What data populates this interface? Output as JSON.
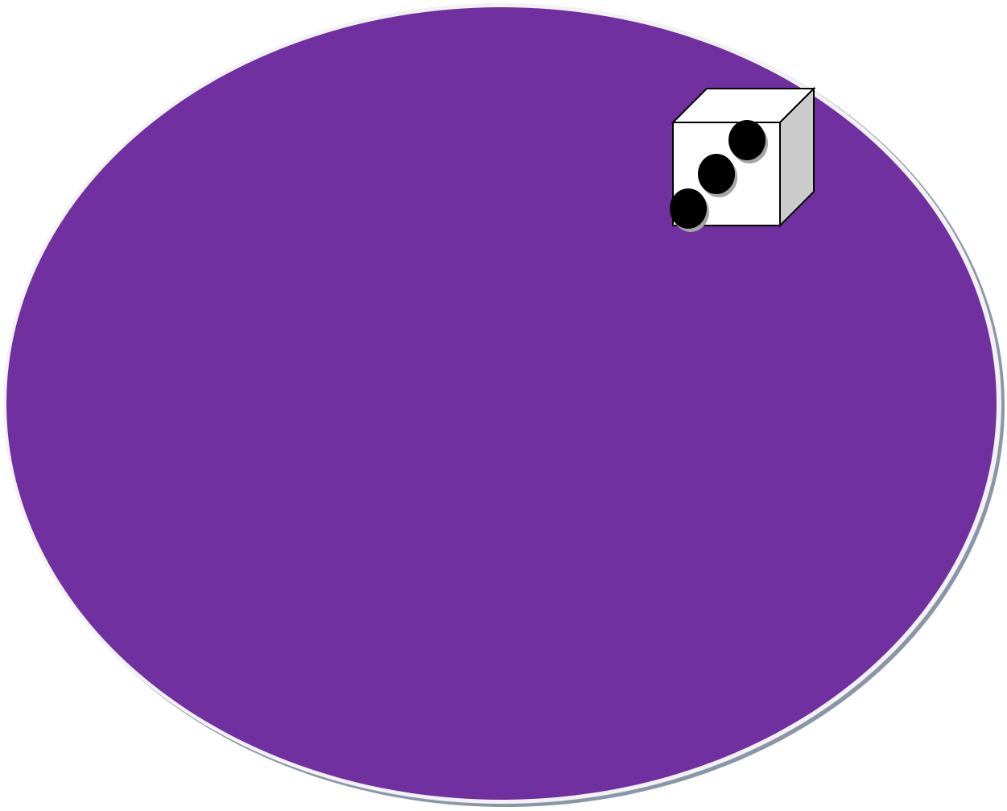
{
  "canvas": {
    "background_color": "#ffffff"
  },
  "ellipse": {
    "shape": "oval",
    "fill_color": "#7030a0",
    "rim_color": "#f2f2f2",
    "shadow_color": "#8a96a8"
  },
  "die": {
    "shape": "cube",
    "face_value": 3,
    "front_face_color": "#ffffff",
    "top_face_color": "#ffffff",
    "side_face_color": "#cccccc",
    "outline_color": "#000000",
    "pip_color": "#000000",
    "pip_shadow_color": "#a6a6a6"
  }
}
